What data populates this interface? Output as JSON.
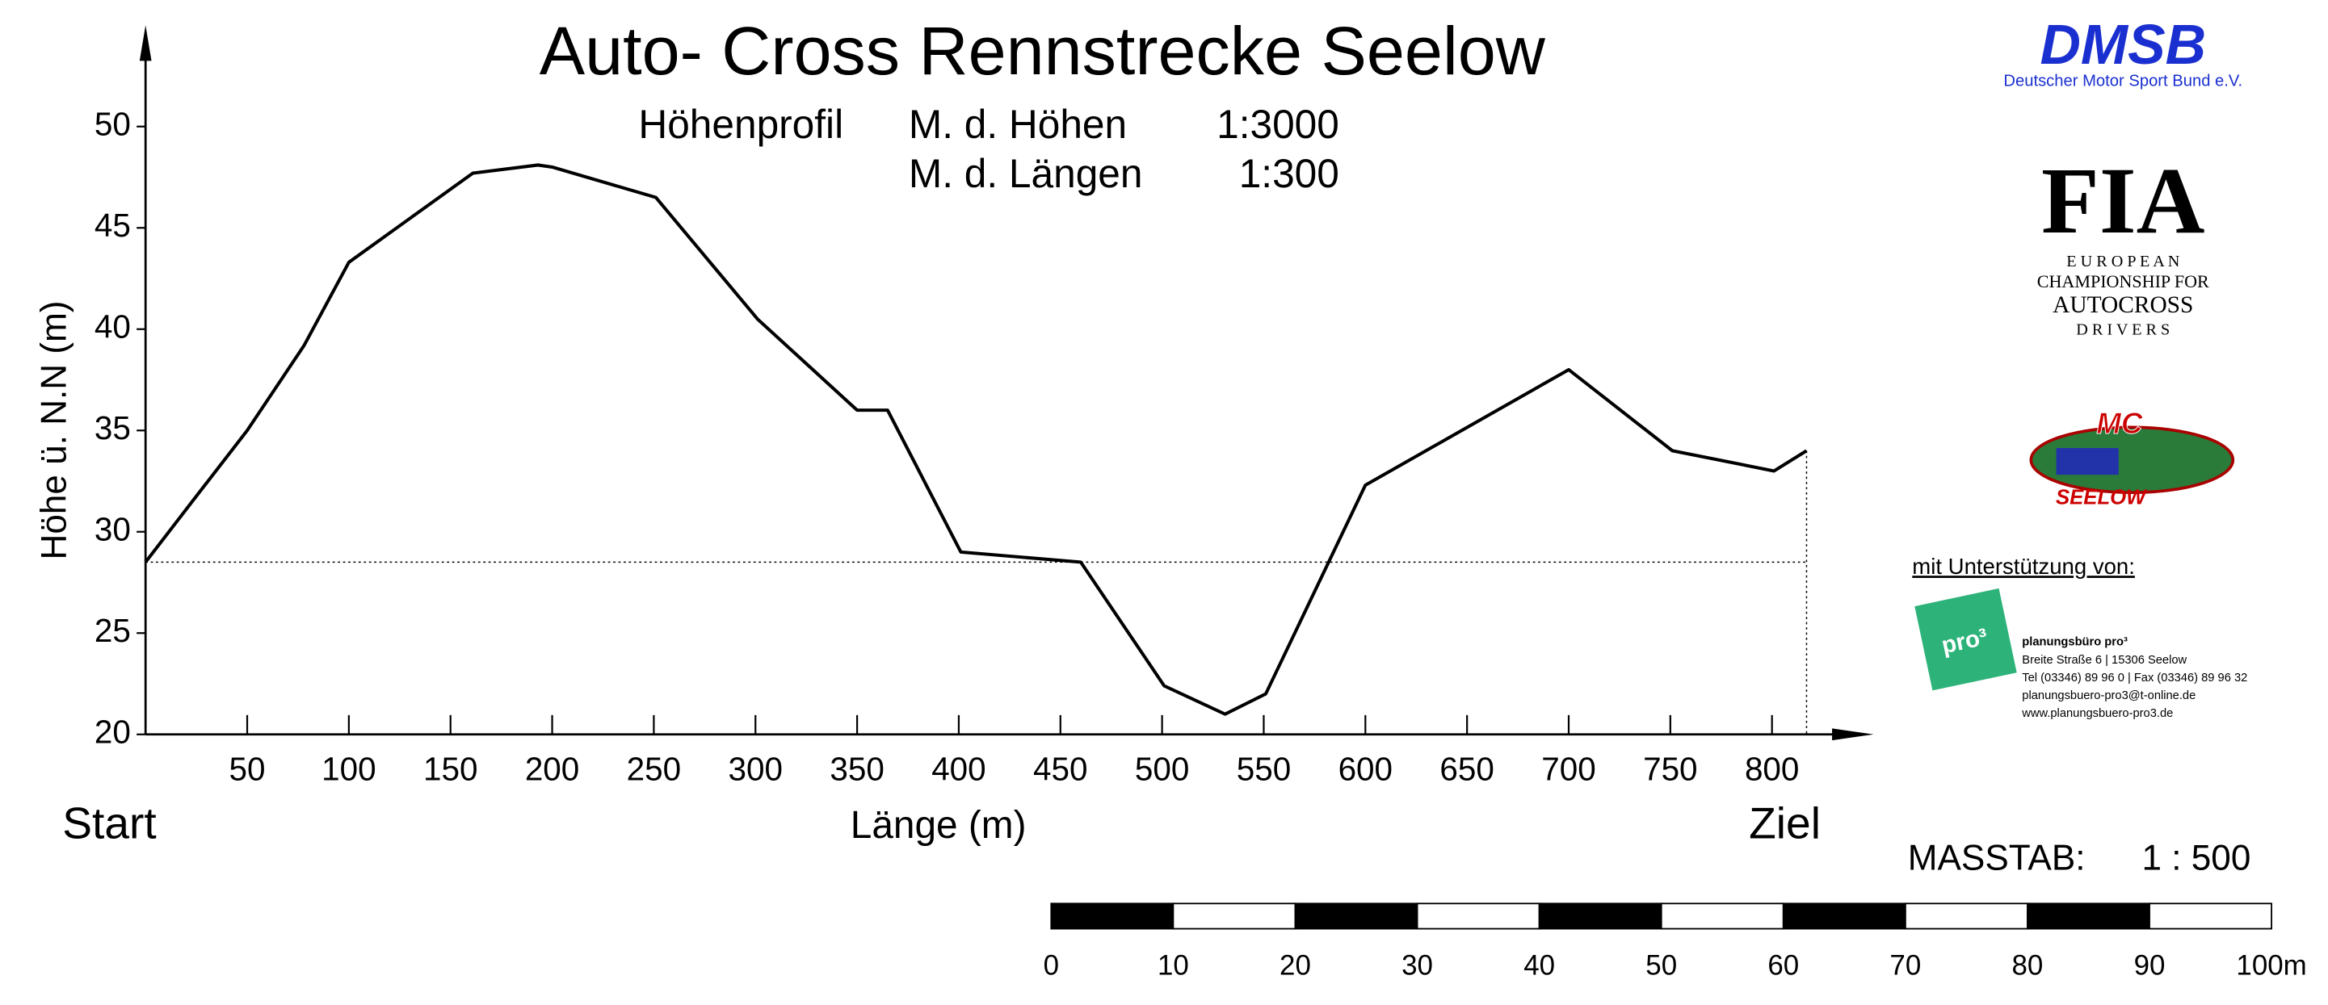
{
  "chart_data": {
    "type": "line",
    "title": "Auto- Cross Rennstrecke Seelow",
    "profile_label": "Höhenprofil",
    "scales": [
      {
        "name": "M. d. Höhen",
        "ratio": "1:3000"
      },
      {
        "name": "M. d. Längen",
        "ratio": "1:300"
      }
    ],
    "y_label": "Höhe ü. N.N (m)",
    "x_label": "Länge (m)",
    "start_label": "Start",
    "end_label": "Ziel",
    "x": [
      0,
      23,
      50,
      78,
      100,
      161,
      193,
      200,
      251,
      301,
      350,
      365,
      401,
      460,
      501,
      531,
      551,
      600,
      700,
      751,
      801,
      817
    ],
    "values": [
      28.5,
      31.5,
      35,
      39.2,
      43.3,
      47.7,
      48.1,
      48,
      46.5,
      40.5,
      36,
      36,
      29,
      28.5,
      22.4,
      21,
      22,
      32.3,
      38,
      34,
      33,
      34
    ],
    "color": "#000000",
    "xlim": [
      0,
      850
    ],
    "ylim": [
      20,
      55
    ],
    "xticks": [
      50,
      100,
      150,
      200,
      250,
      300,
      350,
      400,
      450,
      500,
      550,
      600,
      650,
      700,
      750,
      800
    ],
    "yticks": [
      20,
      25,
      30,
      35,
      40,
      45,
      50
    ]
  },
  "scale_bar": {
    "label": "MASSTAB:",
    "ratio": "1 : 500",
    "labels": [
      "0",
      "10",
      "20",
      "30",
      "40",
      "50",
      "60",
      "70",
      "80",
      "90",
      "100m"
    ]
  },
  "logos": {
    "dmsb": "DMSB",
    "dmsb_sub": "Deutscher Motor Sport Bund e.V.",
    "fia": "FIA",
    "fia_lines": [
      "E U R O P E A N",
      "CHAMPIONSHIP FOR",
      "AUTOCROSS",
      "D R I V E R S"
    ],
    "mc": "MC",
    "seelow": "SEELOW"
  },
  "support": {
    "label": "mit Unterstützung von:",
    "logo": "pro³",
    "lines": [
      "planungsbüro pro³",
      "Breite Straße 6  |  15306 Seelow",
      "Tel (03346) 89 96 0  |  Fax (03346) 89 96 32",
      "planungsbuero-pro3@t-online.de",
      "www.planungsbuero-pro3.de"
    ]
  }
}
